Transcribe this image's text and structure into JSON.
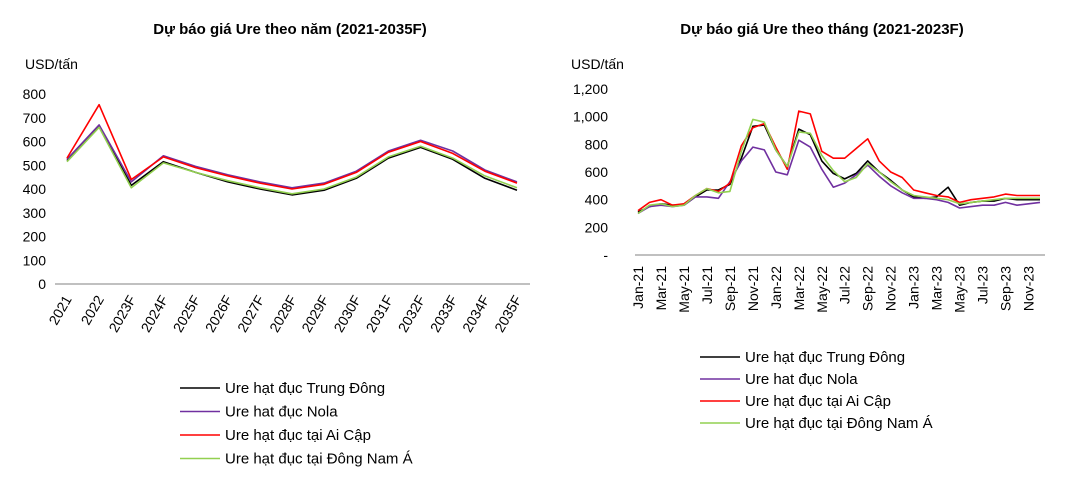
{
  "chart_data": [
    {
      "type": "line",
      "title": "Dự báo giá Ure theo năm (2021-2035F)",
      "ylabel": "USD/tấn",
      "xlabel": "",
      "ylim": [
        0,
        800
      ],
      "yticks": [
        "0",
        "100",
        "200",
        "300",
        "400",
        "500",
        "600",
        "700",
        "800"
      ],
      "categories": [
        "2021",
        "2022",
        "2023F",
        "2024F",
        "2025F",
        "2026F",
        "2027F",
        "2028F",
        "2029F",
        "2030F",
        "2031F",
        "2032F",
        "2033F",
        "2034F",
        "2035F"
      ],
      "grid": false,
      "legend_position": "bottom",
      "series": [
        {
          "name": "Ure hạt đục Trung Đông",
          "color": "#000000",
          "values": [
            520,
            665,
            415,
            515,
            470,
            430,
            400,
            375,
            395,
            445,
            530,
            575,
            525,
            445,
            395
          ]
        },
        {
          "name": "Ure hat đục Nola",
          "color": "#7030a0",
          "values": [
            525,
            670,
            430,
            540,
            495,
            460,
            430,
            405,
            425,
            475,
            560,
            605,
            560,
            480,
            430
          ]
        },
        {
          "name": "Ure hạt đục tại Ai Cập",
          "color": "#ff0000",
          "values": [
            530,
            755,
            440,
            535,
            490,
            455,
            425,
            400,
            420,
            470,
            555,
            600,
            550,
            475,
            425
          ]
        },
        {
          "name": "Ure hạt đục tại Đông Nam Á",
          "color": "#92d050",
          "values": [
            515,
            660,
            405,
            510,
            470,
            435,
            405,
            380,
            400,
            450,
            535,
            580,
            530,
            455,
            405
          ]
        }
      ]
    },
    {
      "type": "line",
      "title": "Dự báo giá Ure theo tháng (2021-2023F)",
      "ylabel": "USD/tấn",
      "xlabel": "",
      "ylim": [
        0,
        1200
      ],
      "yticks": [
        "-",
        "200",
        "400",
        "600",
        "800",
        "1,000",
        "1,200"
      ],
      "categories": [
        "Jan-21",
        "Feb-21",
        "Mar-21",
        "Apr-21",
        "May-21",
        "Jun-21",
        "Jul-21",
        "Aug-21",
        "Sep-21",
        "Oct-21",
        "Nov-21",
        "Dec-21",
        "Jan-22",
        "Feb-22",
        "Mar-22",
        "Apr-22",
        "May-22",
        "Jun-22",
        "Jul-22",
        "Aug-22",
        "Sep-22",
        "Oct-22",
        "Nov-22",
        "Dec-22",
        "Jan-23",
        "Feb-23",
        "Mar-23",
        "Apr-23",
        "May-23",
        "Jun-23",
        "Jul-23",
        "Aug-23",
        "Sep-23",
        "Oct-23",
        "Nov-23",
        "Dec-23"
      ],
      "tick_labels": [
        "Jan-21",
        "Mar-21",
        "May-21",
        "Jul-21",
        "Sep-21",
        "Nov-21",
        "Jan-22",
        "Mar-22",
        "May-22",
        "Jul-22",
        "Sep-22",
        "Nov-22",
        "Jan-23",
        "Mar-23",
        "May-23",
        "Jul-23",
        "Sep-23",
        "Nov-23"
      ],
      "grid": false,
      "legend_position": "bottom",
      "series": [
        {
          "name": "Ure hạt đục Trung Đông",
          "color": "#000000",
          "values": [
            310,
            350,
            370,
            360,
            360,
            420,
            470,
            470,
            510,
            700,
            930,
            940,
            760,
            640,
            910,
            870,
            680,
            590,
            550,
            590,
            680,
            600,
            540,
            470,
            420,
            410,
            420,
            490,
            360,
            380,
            390,
            390,
            410,
            400,
            400,
            400
          ]
        },
        {
          "name": "Ure hat đục Nola",
          "color": "#7030a0",
          "values": [
            300,
            350,
            360,
            350,
            360,
            420,
            420,
            410,
            530,
            680,
            780,
            760,
            600,
            580,
            830,
            780,
            620,
            490,
            520,
            580,
            650,
            570,
            500,
            450,
            410,
            410,
            400,
            380,
            340,
            350,
            360,
            360,
            380,
            360,
            370,
            380
          ]
        },
        {
          "name": "Ure hạt đục tại Ai Cập",
          "color": "#ff0000",
          "values": [
            320,
            380,
            400,
            360,
            370,
            430,
            480,
            460,
            520,
            790,
            920,
            950,
            780,
            620,
            1040,
            1020,
            750,
            700,
            700,
            770,
            840,
            680,
            600,
            560,
            470,
            450,
            430,
            420,
            380,
            400,
            410,
            420,
            440,
            430,
            430,
            430
          ]
        },
        {
          "name": "Ure hạt đục tại Đông Nam Á",
          "color": "#92d050",
          "values": [
            300,
            360,
            370,
            350,
            360,
            430,
            480,
            450,
            460,
            750,
            980,
            960,
            760,
            640,
            890,
            880,
            720,
            610,
            530,
            560,
            660,
            600,
            530,
            470,
            430,
            420,
            410,
            400,
            370,
            380,
            390,
            400,
            410,
            410,
            410,
            410
          ]
        }
      ]
    }
  ]
}
